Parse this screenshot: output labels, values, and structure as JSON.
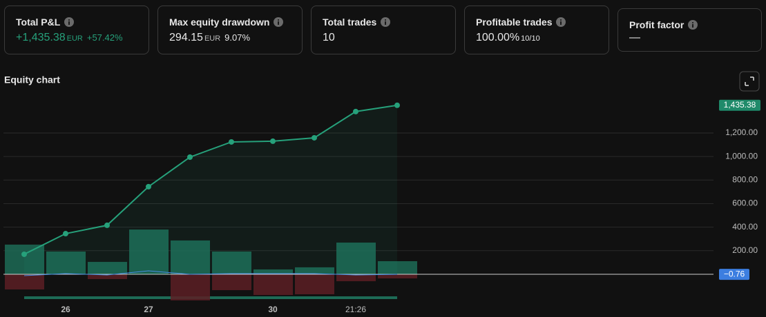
{
  "stats": [
    {
      "label": "Total P&L",
      "value": "+1,435.38",
      "unit": "EUR",
      "change": "+57.42%"
    },
    {
      "label": "Max equity drawdown",
      "value": "294.15",
      "unit": "EUR",
      "change": "9.07%"
    },
    {
      "label": "Total trades",
      "value": "10"
    },
    {
      "label": "Profitable trades",
      "value": "100.00%",
      "change": "10/10"
    },
    {
      "label": "Profit factor",
      "value": "—"
    }
  ],
  "chart_data": {
    "type": "line",
    "title": "Equity chart",
    "categories": [
      null,
      "26",
      null,
      "27",
      null,
      null,
      "30",
      null,
      "21:26",
      null
    ],
    "series": [
      {
        "color": "#26a17b",
        "values": [
          170,
          345,
          416,
          744,
          995,
          1124,
          1130,
          1159,
          1382,
          1435.38
        ],
        "value_labels": [
          null,
          null,
          null,
          null,
          null,
          null,
          null,
          null,
          null,
          "1,435.38"
        ]
      },
      {
        "color": "#4a8ee6",
        "values": [
          -12,
          6,
          -6,
          29,
          0,
          6,
          6,
          6,
          -6,
          -0.76
        ],
        "value_labels": [
          null,
          null,
          null,
          null,
          null,
          null,
          null,
          null,
          null,
          "−0.76"
        ]
      }
    ],
    "runup": {
      "color": "#1d6b56",
      "values": [
        252,
        193,
        105,
        380,
        287,
        193,
        41,
        59,
        269,
        111
      ]
    },
    "drawdown": {
      "color": "#5c1f24",
      "values": [
        -129,
        0,
        -41,
        0,
        -222,
        -135,
        -176,
        -170,
        -59,
        -35
      ]
    },
    "ylim": [
      -363,
      1510
    ],
    "yticks": [
      {
        "value": 200,
        "label": "200.00"
      },
      {
        "value": 400,
        "label": "400.00"
      },
      {
        "value": 600,
        "label": "600.00"
      },
      {
        "value": 800,
        "label": "800.00"
      },
      {
        "value": 1000,
        "label": "1,000.00"
      },
      {
        "value": 1200,
        "label": "1,200.00"
      }
    ],
    "grid": true
  }
}
